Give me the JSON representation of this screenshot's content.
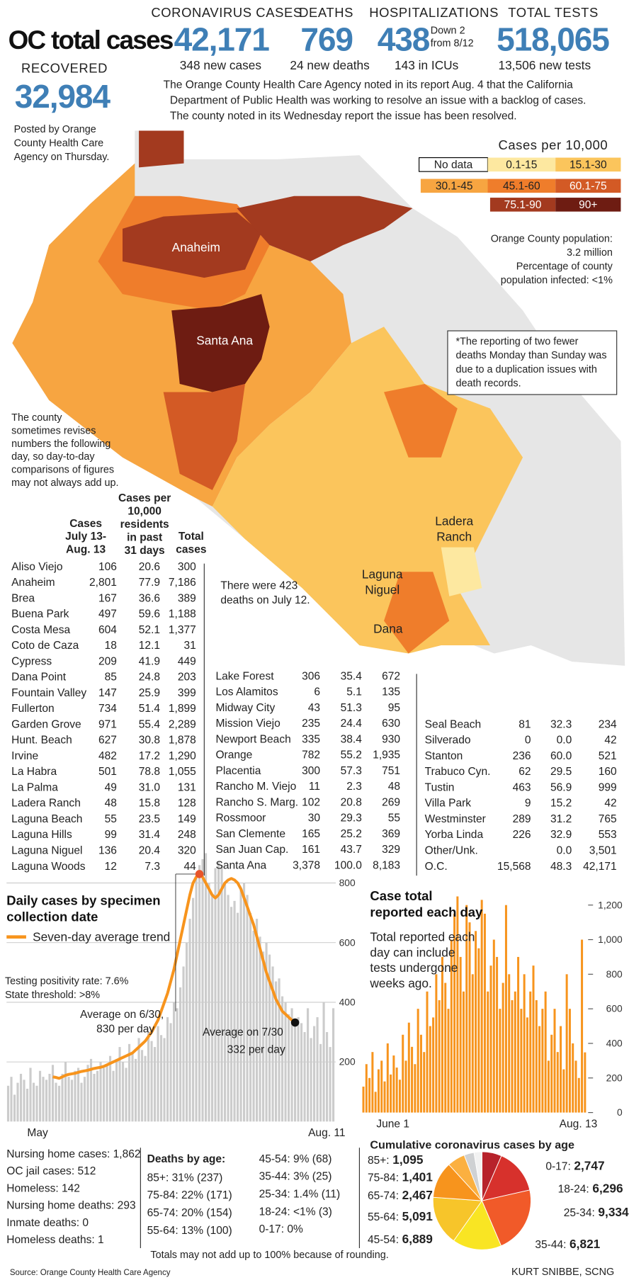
{
  "header": {
    "title": "OC total cases",
    "stats": [
      {
        "label": "CORONAVIRUS CASES",
        "value": "42,171",
        "sub": "348 new cases"
      },
      {
        "label": "DEATHS",
        "value": "769",
        "sub": "24 new deaths"
      },
      {
        "label": "HOSPITALIZATIONS",
        "value": "438",
        "note": [
          "Down 2",
          "from 8/12"
        ],
        "sub": "143 in ICUs"
      },
      {
        "label": "TOTAL TESTS",
        "value": "518,065",
        "sub": "13,506 new tests"
      }
    ],
    "recovered": {
      "label": "RECOVERED",
      "value": "32,984",
      "note": [
        "Posted by Orange",
        "County Health Care",
        "Agency on Thursday."
      ]
    },
    "agency_note": [
      "The Orange County Health Care Agency noted in its report Aug. 4 that the California",
      "Department of Public Health was working to resolve an issue with a backlog of cases.",
      "The county noted in its Wednesday report the issue has been resolved."
    ]
  },
  "map": {
    "legend": {
      "title": "Cases per 10,000",
      "items": [
        {
          "label": "No data",
          "color": "#ffffff"
        },
        {
          "label": "0.1-15",
          "color": "#fde8a0"
        },
        {
          "label": "15.1-30",
          "color": "#fbc55c"
        },
        {
          "label": "30.1-45",
          "color": "#f7a541"
        },
        {
          "label": "45.1-60",
          "color": "#ef7d2b"
        },
        {
          "label": "60.1-75",
          "color": "#d35a25"
        },
        {
          "label": "75.1-90",
          "color": "#a33a1f"
        },
        {
          "label": "90+",
          "color": "#6e1c12"
        }
      ]
    },
    "labels": [
      [
        "Anaheim"
      ],
      [
        "Santa Ana"
      ],
      [
        "Ladera",
        "Ranch"
      ],
      [
        "Laguna",
        "Niguel"
      ],
      [
        "Dana"
      ]
    ],
    "population_note": [
      "Orange County population:",
      "3.2 million",
      "Percentage of county",
      "population infected: <1%"
    ],
    "deaths_note": [
      "*The reporting of two fewer",
      "deaths Monday than Sunday was",
      "due to a duplication issues with",
      "death records."
    ],
    "revision_note": [
      "The county",
      "sometimes revises",
      "numbers the following",
      "day, so day-to-day",
      "comparisons of figures",
      "may not always add up."
    ]
  },
  "table": {
    "columns": [
      [
        "Cases",
        "July 13-",
        "Aug. 13"
      ],
      [
        "Cases per",
        "10,000",
        "residents",
        "in past",
        "31 days"
      ],
      [
        "Total",
        "cases"
      ]
    ],
    "note": [
      "There were 423",
      "deaths on July 12."
    ],
    "groups": [
      [
        [
          "Aliso Viejo",
          "106",
          "20.6",
          "300"
        ],
        [
          "Anaheim",
          "2,801",
          "77.9",
          "7,186"
        ],
        [
          "Brea",
          "167",
          "36.6",
          "389"
        ],
        [
          "Buena Park",
          "497",
          "59.6",
          "1,188"
        ],
        [
          "Costa Mesa",
          "604",
          "52.1",
          "1,377"
        ],
        [
          "Coto de Caza",
          "18",
          "12.1",
          "31"
        ],
        [
          "Cypress",
          "209",
          "41.9",
          "449"
        ],
        [
          "Dana Point",
          "85",
          "24.8",
          "203"
        ],
        [
          "Fountain Valley",
          "147",
          "25.9",
          "399"
        ],
        [
          "Fullerton",
          "734",
          "51.4",
          "1,899"
        ],
        [
          "Garden Grove",
          "971",
          "55.4",
          "2,289"
        ],
        [
          "Hunt. Beach",
          "627",
          "30.8",
          "1,878"
        ],
        [
          "Irvine",
          "482",
          "17.2",
          "1,290"
        ],
        [
          "La Habra",
          "501",
          "78.8",
          "1,055"
        ],
        [
          "La Palma",
          "49",
          "31.0",
          "131"
        ],
        [
          "Ladera Ranch",
          "48",
          "15.8",
          "128"
        ],
        [
          "Laguna Beach",
          "55",
          "23.5",
          "149"
        ],
        [
          "Laguna Hills",
          "99",
          "31.4",
          "248"
        ],
        [
          "Laguna Niguel",
          "136",
          "20.4",
          "320"
        ],
        [
          "Laguna Woods",
          "12",
          "7.3",
          "44"
        ]
      ],
      [
        [
          "Lake Forest",
          "306",
          "35.4",
          "672"
        ],
        [
          "Los Alamitos",
          "6",
          "5.1",
          "135"
        ],
        [
          "Midway City",
          "43",
          "51.3",
          "95"
        ],
        [
          "Mission Viejo",
          "235",
          "24.4",
          "630"
        ],
        [
          "Newport Beach",
          "335",
          "38.4",
          "930"
        ],
        [
          "Orange",
          "782",
          "55.2",
          "1,935"
        ],
        [
          "Placentia",
          "300",
          "57.3",
          "751"
        ],
        [
          "Rancho M. Viejo",
          "11",
          "2.3",
          "48"
        ],
        [
          "Rancho S. Marg.",
          "102",
          "20.8",
          "269"
        ],
        [
          "Rossmoor",
          "30",
          "29.3",
          "55"
        ],
        [
          "San Clemente",
          "165",
          "25.2",
          "369"
        ],
        [
          "San Juan Cap.",
          "161",
          "43.7",
          "329"
        ],
        [
          "Santa Ana",
          "3,378",
          "100.0",
          "8,183"
        ]
      ],
      [
        [
          "Seal Beach",
          "81",
          "32.3",
          "234"
        ],
        [
          "Silverado",
          "0",
          "0.0",
          "42"
        ],
        [
          "Stanton",
          "236",
          "60.0",
          "521"
        ],
        [
          "Trabuco Cyn.",
          "62",
          "29.5",
          "160"
        ],
        [
          "Tustin",
          "463",
          "56.9",
          "999"
        ],
        [
          "Villa Park",
          "9",
          "15.2",
          "42"
        ],
        [
          "Westminster",
          "289",
          "31.2",
          "765"
        ],
        [
          "Yorba Linda",
          "226",
          "32.9",
          "553"
        ],
        [
          "Other/Unk.",
          null,
          "0.0",
          "3,501"
        ],
        [
          "O.C.",
          "15,568",
          "48.3",
          "42,171"
        ]
      ]
    ]
  },
  "chart_data": [
    {
      "type": "bar",
      "title": [
        "Daily cases by specimen",
        "collection date"
      ],
      "categories": [
        "May",
        null,
        null,
        null,
        null,
        null,
        null,
        null,
        null,
        null,
        null,
        null,
        null,
        null,
        null,
        null,
        null,
        null,
        null,
        null,
        null,
        null,
        null,
        null,
        null,
        null,
        null,
        null,
        null,
        null,
        null,
        null,
        null,
        null,
        null,
        null,
        null,
        null,
        null,
        null,
        null,
        null,
        null,
        null,
        null,
        null,
        null,
        null,
        null,
        null,
        null,
        null,
        null,
        null,
        null,
        null,
        null,
        null,
        null,
        null,
        null,
        null,
        null,
        null,
        null,
        null,
        null,
        null,
        null,
        null,
        null,
        null,
        null,
        null,
        null,
        null,
        null,
        null,
        null,
        null,
        null,
        null,
        null,
        null,
        null,
        null,
        null,
        null,
        null,
        null,
        null,
        null,
        null,
        null,
        null,
        null,
        null,
        null,
        null,
        null,
        null,
        null,
        "Aug. 11"
      ],
      "values": [
        120,
        150,
        90,
        130,
        160,
        140,
        110,
        180,
        130,
        120,
        170,
        150,
        140,
        160,
        190,
        130,
        120,
        160,
        200,
        150,
        140,
        170,
        180,
        130,
        150,
        190,
        210,
        160,
        170,
        200,
        180,
        190,
        220,
        170,
        210,
        250,
        200,
        180,
        260,
        230,
        210,
        280,
        240,
        220,
        300,
        270,
        250,
        320,
        290,
        280,
        350,
        330,
        400,
        380,
        450,
        520,
        600,
        680,
        750,
        820,
        860,
        880,
        900,
        800,
        760,
        850,
        870,
        860,
        800,
        760,
        720,
        740,
        700,
        780,
        800,
        760,
        700,
        640,
        680,
        620,
        570,
        600,
        560,
        520,
        470,
        480,
        420,
        400,
        360,
        380,
        340,
        350,
        330,
        300,
        380,
        280,
        320,
        350,
        260,
        400,
        300,
        250,
        380
      ],
      "color": "#cccccc",
      "series": [
        {
          "name": "Seven-day average trend",
          "color": "#f7941d",
          "type": "line",
          "values": [
            null,
            null,
            null,
            null,
            null,
            null,
            null,
            null,
            null,
            null,
            null,
            null,
            null,
            null,
            150,
            148,
            145,
            150,
            155,
            158,
            160,
            162,
            165,
            168,
            170,
            172,
            175,
            178,
            180,
            182,
            185,
            190,
            195,
            200,
            205,
            210,
            215,
            220,
            225,
            230,
            240,
            250,
            260,
            270,
            285,
            300,
            320,
            340,
            370,
            400,
            430,
            470,
            510,
            560,
            610,
            660,
            710,
            760,
            800,
            820,
            830,
            820,
            800,
            780,
            760,
            750,
            760,
            780,
            800,
            810,
            815,
            810,
            800,
            780,
            750,
            720,
            690,
            660,
            620,
            580,
            540,
            500,
            470,
            440,
            410,
            390,
            370,
            360,
            350,
            340,
            332,
            null,
            null,
            null,
            null,
            null,
            null,
            null,
            null,
            null,
            null,
            null,
            null
          ]
        }
      ],
      "ylim": [
        0,
        800
      ],
      "yticks": [
        200,
        400,
        600,
        800
      ],
      "grid": true,
      "annotations": [
        "Testing positivity rate: 7.6%",
        "State threshold: >8%",
        "Average on 6/30,",
        "830 per day",
        "Average on 7/30",
        "332 per day"
      ]
    },
    {
      "type": "bar",
      "title": [
        "Case total",
        "reported each day"
      ],
      "subtitle": [
        "Total reported each",
        "day can include",
        "tests undergone",
        "weeks ago."
      ],
      "categories": [
        "June 1",
        null,
        null,
        null,
        null,
        null,
        null,
        null,
        null,
        null,
        null,
        null,
        null,
        null,
        null,
        null,
        null,
        null,
        null,
        null,
        null,
        null,
        null,
        null,
        null,
        null,
        null,
        null,
        null,
        null,
        null,
        null,
        null,
        null,
        null,
        null,
        null,
        null,
        null,
        null,
        null,
        null,
        null,
        null,
        null,
        null,
        null,
        null,
        null,
        null,
        null,
        null,
        null,
        null,
        null,
        null,
        null,
        null,
        null,
        null,
        null,
        null,
        null,
        null,
        null,
        null,
        null,
        null,
        null,
        null,
        null,
        null,
        null,
        "Aug. 13"
      ],
      "values": [
        150,
        280,
        200,
        350,
        120,
        250,
        300,
        180,
        400,
        220,
        330,
        260,
        190,
        450,
        300,
        520,
        380,
        280,
        600,
        450,
        350,
        700,
        500,
        550,
        800,
        650,
        900,
        750,
        600,
        1000,
        1150,
        1250,
        900,
        700,
        1200,
        1100,
        800,
        1050,
        950,
        1230,
        1150,
        700,
        850,
        1000,
        900,
        600,
        750,
        1200,
        800,
        650,
        700,
        900,
        600,
        800,
        550,
        700,
        850,
        650,
        500,
        600,
        700,
        300,
        450,
        600,
        350,
        500,
        250,
        800,
        600,
        400,
        300,
        200,
        1000,
        348
      ],
      "color": "#f7941d",
      "ylim": [
        0,
        1200
      ],
      "yticks": [
        0,
        200,
        400,
        600,
        800,
        {
          "value": 1000,
          "label": "1,000"
        },
        {
          "value": 1200,
          "label": "1,200"
        }
      ]
    },
    {
      "type": "pie",
      "title": "Cumulative coronavirus cases by age",
      "categories": [
        "0-17:",
        "18-24:",
        "25-34:",
        "35-44:",
        "45-54:",
        "55-64:",
        "65-74:",
        "75-84:",
        "85+:"
      ],
      "values": [
        2747,
        6296,
        9334,
        6821,
        6889,
        5091,
        2467,
        1401,
        1095
      ],
      "value_labels": [
        "2,747",
        "6,296",
        "9,334",
        "6,821",
        "6,889",
        "5,091",
        "2,467",
        "1,401",
        "1,095"
      ],
      "colors": [
        "#b7222b",
        "#d7312c",
        "#f15a29",
        "#f9e523",
        "#f7c52a",
        "#f7941d",
        "#fbb040",
        "#cfd1d3",
        "#f2f2f2"
      ]
    }
  ],
  "footer": {
    "stats": [
      "Nursing home cases: 1,862",
      "OC jail cases: 512",
      "Homeless: 142",
      "Nursing home deaths: 293",
      "Inmate deaths: 0",
      "Homeless deaths: 1"
    ],
    "deaths_by_age": {
      "title": "Deaths by age:",
      "items": [
        "85+: 31% (237)",
        "75-84: 22% (171)",
        "65-74: 20% (154)",
        "55-64: 13% (100)",
        "45-54: 9% (68)",
        "35-44: 3% (25)",
        "25-34: 1.4% (11)",
        "18-24: <1% (3)",
        "0-17: 0%"
      ]
    },
    "rounding_note": "Totals may not add up to 100% because of rounding.",
    "source": "Source: Orange County Health Care Agency",
    "credit": "KURT SNIBBE, SCNG"
  }
}
